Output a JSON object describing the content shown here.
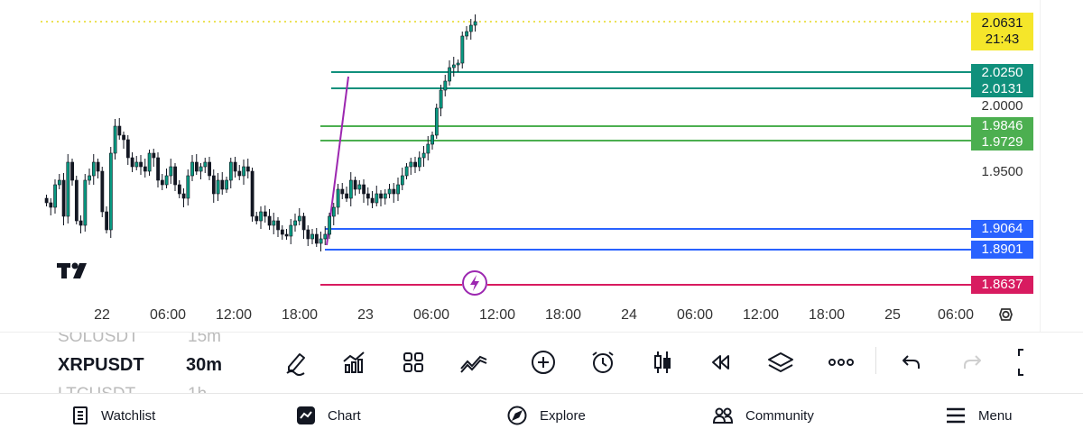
{
  "symbol_list": {
    "prev_symbol": "SOLUSDT",
    "prev_interval": "15m",
    "current_symbol": "XRPUSDT",
    "current_interval": "30m",
    "next_symbol": "LTCUSDT",
    "next_interval": "1h"
  },
  "price_scale": {
    "current_price": "2.0631",
    "countdown": "21:43",
    "levels": [
      "2.0250",
      "2.0131",
      "2.0000",
      "1.9846",
      "1.9729",
      "1.9500",
      "1.9064",
      "1.8901",
      "1.8637"
    ]
  },
  "time_axis": [
    "22",
    "06:00",
    "12:00",
    "18:00",
    "23",
    "06:00",
    "12:00",
    "18:00",
    "24",
    "06:00",
    "12:00",
    "18:00",
    "25",
    "06:00"
  ],
  "colors": {
    "up": "#089981",
    "down": "#131722",
    "current_price": "#f5e62a",
    "teal_level": "#10907c",
    "green_level": "#4caf50",
    "blue_level": "#2962ff",
    "pink_level": "#d81b60",
    "purple_line": "#9c27b0"
  },
  "toolbar": {
    "icons": [
      "pencil-icon",
      "indicators-icon",
      "grid-icon",
      "strategy-icon",
      "add-icon",
      "alarm-icon",
      "candle-type-icon",
      "replay-icon",
      "layers-icon",
      "more-icon",
      "undo-icon",
      "redo-icon",
      "fullscreen-icon"
    ]
  },
  "nav": {
    "watchlist": "Watchlist",
    "chart": "Chart",
    "explore": "Explore",
    "community": "Community",
    "menu": "Menu"
  }
}
